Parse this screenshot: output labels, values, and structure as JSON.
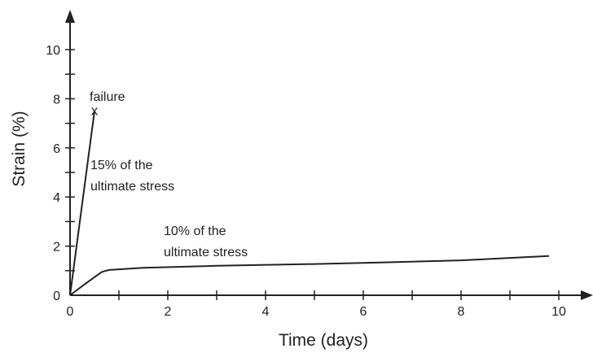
{
  "chart_data": {
    "type": "line",
    "title": "",
    "xlabel": "Time (days)",
    "ylabel": "Strain (%)",
    "xlim": [
      0,
      10
    ],
    "ylim": [
      0,
      10
    ],
    "x_ticks": [
      0,
      2,
      4,
      6,
      8,
      10
    ],
    "y_ticks": [
      0,
      2,
      4,
      6,
      8,
      10
    ],
    "grid": false,
    "legend": "none",
    "series": [
      {
        "points": [
          [
            0,
            0
          ],
          [
            0.5,
            7.5
          ]
        ]
      },
      {
        "points": [
          [
            0,
            0
          ],
          [
            0.3,
            0.45
          ],
          [
            0.65,
            0.95
          ],
          [
            0.8,
            1.03
          ],
          [
            1.5,
            1.12
          ],
          [
            3,
            1.2
          ],
          [
            5,
            1.27
          ],
          [
            6.5,
            1.34
          ],
          [
            8,
            1.42
          ],
          [
            9.2,
            1.54
          ],
          [
            9.8,
            1.6
          ]
        ]
      }
    ],
    "annotations": {
      "failure_label": "failure",
      "failure_marker": "x",
      "failure_point": [
        0.5,
        7.5
      ],
      "series_1_label_line1": "15% of the",
      "series_1_label_line2": "ultimate stress",
      "series_2_label_line1": "10% of the",
      "series_2_label_line2": "ultimate stress"
    }
  }
}
